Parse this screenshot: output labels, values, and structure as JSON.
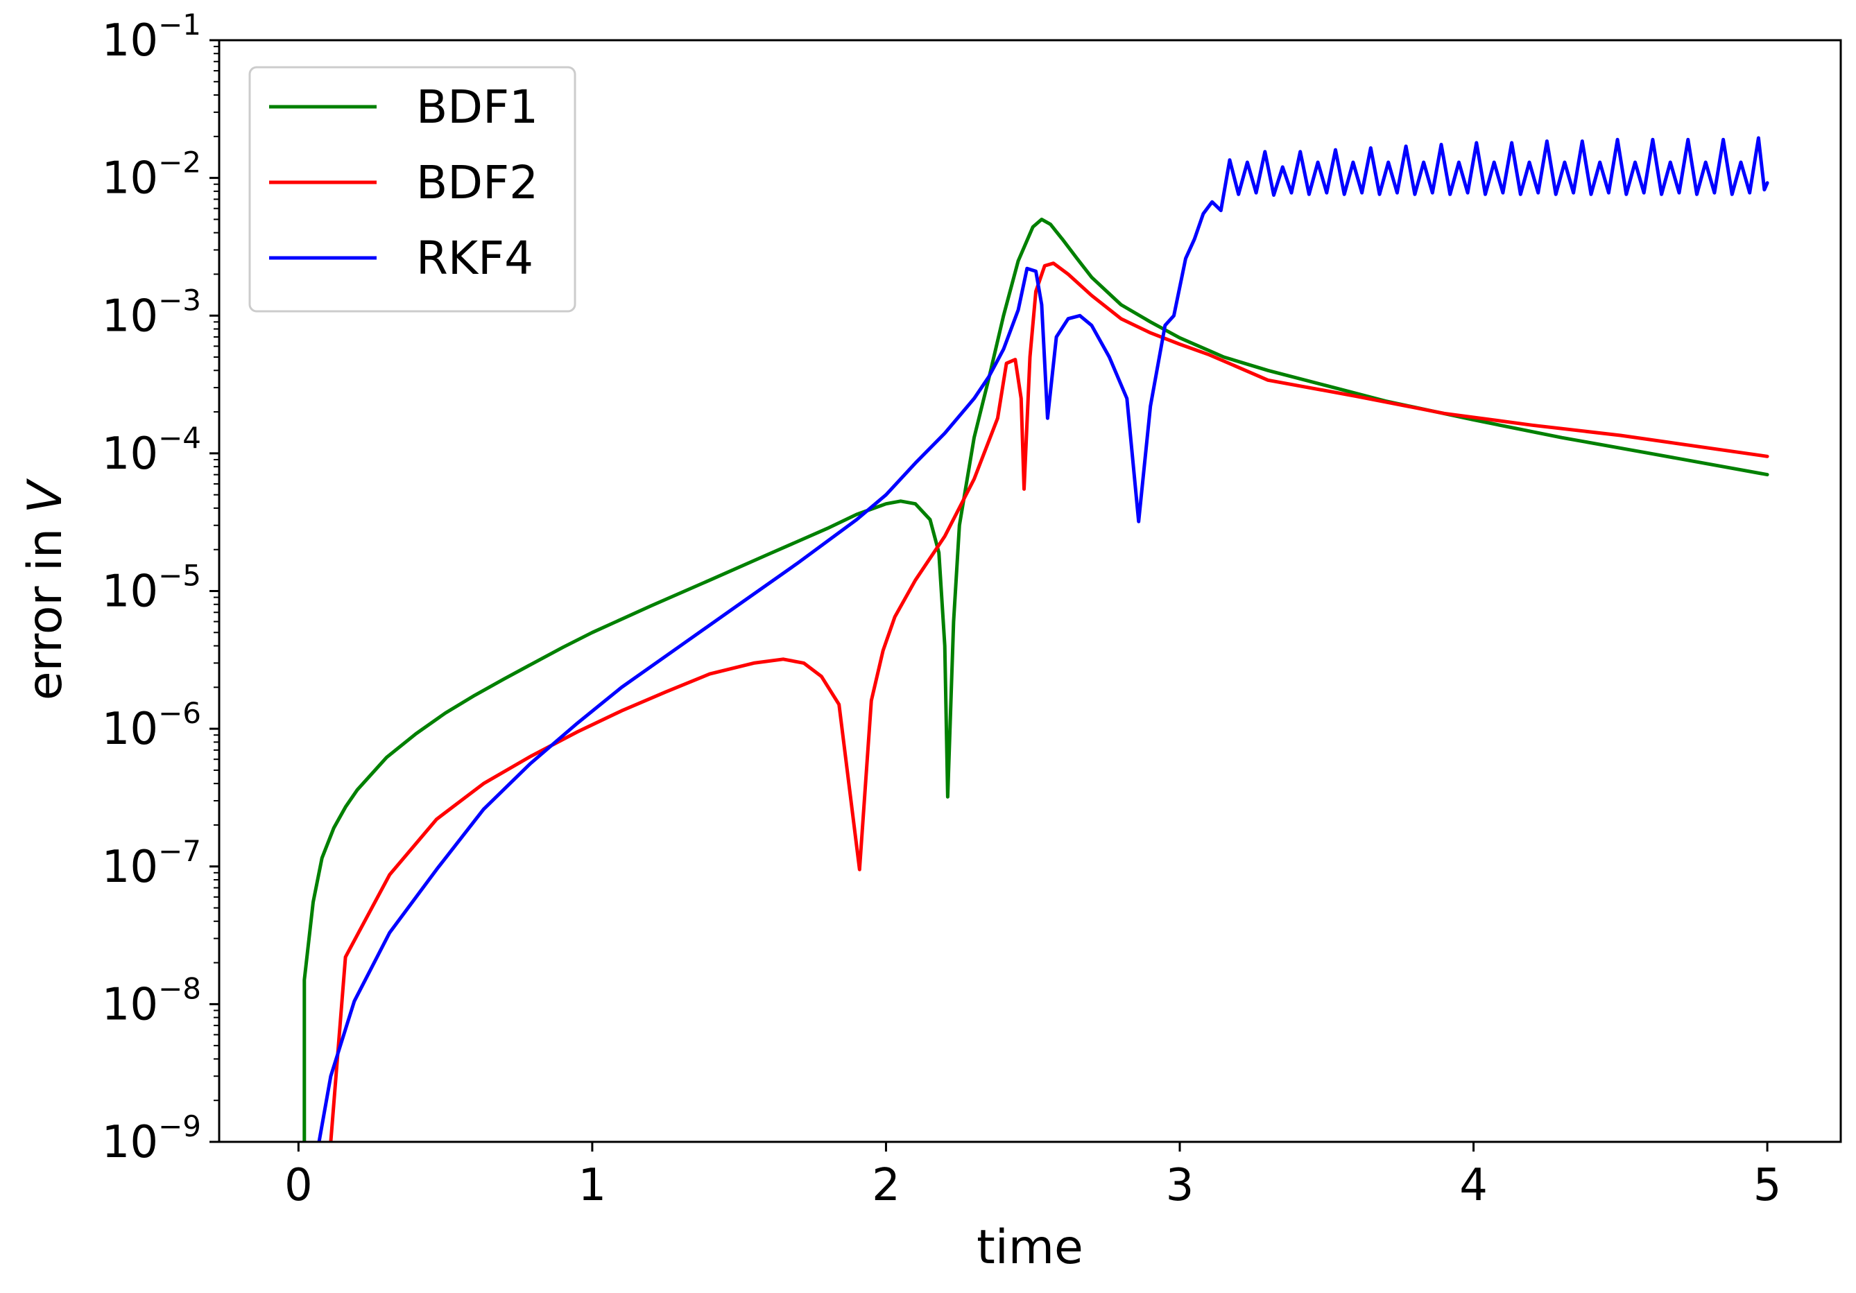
{
  "chart_data": {
    "type": "line",
    "xlabel": "time",
    "ylabel": {
      "prefix": "error in ",
      "var": "V"
    },
    "xlim": [
      -0.27,
      5.25
    ],
    "ylim": [
      1e-09,
      0.1
    ],
    "yscale": "log",
    "xticks": [
      {
        "value": 0,
        "label": "0"
      },
      {
        "value": 1,
        "label": "1"
      },
      {
        "value": 2,
        "label": "2"
      },
      {
        "value": 3,
        "label": "3"
      },
      {
        "value": 4,
        "label": "4"
      },
      {
        "value": 5,
        "label": "5"
      }
    ],
    "yticks": [
      {
        "exp": -9,
        "base": "10",
        "sup": "−9"
      },
      {
        "exp": -8,
        "base": "10",
        "sup": "−8"
      },
      {
        "exp": -7,
        "base": "10",
        "sup": "−7"
      },
      {
        "exp": -6,
        "base": "10",
        "sup": "−6"
      },
      {
        "exp": -5,
        "base": "10",
        "sup": "−5"
      },
      {
        "exp": -4,
        "base": "10",
        "sup": "−4"
      },
      {
        "exp": -3,
        "base": "10",
        "sup": "−3"
      },
      {
        "exp": -2,
        "base": "10",
        "sup": "−2"
      },
      {
        "exp": -1,
        "base": "10",
        "sup": "−1"
      }
    ],
    "legend": {
      "placement": "upper-left"
    },
    "grid": false,
    "series": [
      {
        "name": "BDF1",
        "color": "#008000",
        "points": [
          [
            0.02,
            1e-09
          ],
          [
            0.02,
            1.5e-08
          ],
          [
            0.05,
            5.5e-08
          ],
          [
            0.08,
            1.15e-07
          ],
          [
            0.12,
            1.9e-07
          ],
          [
            0.16,
            2.7e-07
          ],
          [
            0.2,
            3.6e-07
          ],
          [
            0.3,
            6.2e-07
          ],
          [
            0.4,
            9.2e-07
          ],
          [
            0.5,
            1.3e-06
          ],
          [
            0.6,
            1.75e-06
          ],
          [
            0.7,
            2.3e-06
          ],
          [
            0.8,
            3e-06
          ],
          [
            0.9,
            3.9e-06
          ],
          [
            1.0,
            5e-06
          ],
          [
            1.2,
            7.8e-06
          ],
          [
            1.4,
            1.2e-05
          ],
          [
            1.6,
            1.85e-05
          ],
          [
            1.8,
            2.85e-05
          ],
          [
            1.9,
            3.6e-05
          ],
          [
            2.0,
            4.3e-05
          ],
          [
            2.05,
            4.5e-05
          ],
          [
            2.1,
            4.3e-05
          ],
          [
            2.15,
            3.3e-05
          ],
          [
            2.18,
            1.9e-05
          ],
          [
            2.2,
            4e-06
          ],
          [
            2.21,
            3.2e-07
          ],
          [
            2.23,
            6e-06
          ],
          [
            2.25,
            3e-05
          ],
          [
            2.3,
            0.00013
          ],
          [
            2.35,
            0.00035
          ],
          [
            2.4,
            0.001
          ],
          [
            2.45,
            0.0025
          ],
          [
            2.5,
            0.0044
          ],
          [
            2.53,
            0.005
          ],
          [
            2.56,
            0.0046
          ],
          [
            2.6,
            0.0036
          ],
          [
            2.65,
            0.0026
          ],
          [
            2.7,
            0.0019
          ],
          [
            2.8,
            0.0012
          ],
          [
            2.9,
            0.0009
          ],
          [
            3.0,
            0.00069
          ],
          [
            3.15,
            0.0005
          ],
          [
            3.3,
            0.0004
          ],
          [
            3.5,
            0.00031
          ],
          [
            3.7,
            0.00024
          ],
          [
            4.0,
            0.000175
          ],
          [
            4.3,
            0.00013
          ],
          [
            4.6,
            0.0001
          ],
          [
            5.0,
            7e-05
          ]
        ]
      },
      {
        "name": "BDF2",
        "color": "#ff0000",
        "points": [
          [
            0.11,
            1e-09
          ],
          [
            0.16,
            2.2e-08
          ],
          [
            0.31,
            8.7e-08
          ],
          [
            0.47,
            2.2e-07
          ],
          [
            0.63,
            4e-07
          ],
          [
            0.79,
            6.3e-07
          ],
          [
            0.95,
            9.5e-07
          ],
          [
            1.1,
            1.35e-06
          ],
          [
            1.25,
            1.85e-06
          ],
          [
            1.4,
            2.5e-06
          ],
          [
            1.55,
            3e-06
          ],
          [
            1.65,
            3.2e-06
          ],
          [
            1.72,
            3e-06
          ],
          [
            1.78,
            2.4e-06
          ],
          [
            1.84,
            1.5e-06
          ],
          [
            1.91,
            9.5e-08
          ],
          [
            1.95,
            1.6e-06
          ],
          [
            1.99,
            3.7e-06
          ],
          [
            2.03,
            6.5e-06
          ],
          [
            2.1,
            1.2e-05
          ],
          [
            2.2,
            2.5e-05
          ],
          [
            2.3,
            6.5e-05
          ],
          [
            2.38,
            0.00018
          ],
          [
            2.41,
            0.00045
          ],
          [
            2.44,
            0.00048
          ],
          [
            2.46,
            0.00025
          ],
          [
            2.47,
            5.5e-05
          ],
          [
            2.49,
            0.0005
          ],
          [
            2.51,
            0.0015
          ],
          [
            2.54,
            0.0023
          ],
          [
            2.57,
            0.0024
          ],
          [
            2.62,
            0.002
          ],
          [
            2.7,
            0.0014
          ],
          [
            2.8,
            0.00095
          ],
          [
            2.9,
            0.00075
          ],
          [
            3.0,
            0.00062
          ],
          [
            3.1,
            0.00052
          ],
          [
            3.3,
            0.00034
          ],
          [
            3.6,
            0.00026
          ],
          [
            3.9,
            0.000195
          ],
          [
            4.2,
            0.00016
          ],
          [
            4.5,
            0.000135
          ],
          [
            5.0,
            9.5e-05
          ]
        ]
      },
      {
        "name": "RKF4",
        "color": "#0000ff",
        "points": [
          [
            0.07,
            1e-09
          ],
          [
            0.11,
            3e-09
          ],
          [
            0.19,
            1.05e-08
          ],
          [
            0.31,
            3.3e-08
          ],
          [
            0.47,
            9.5e-08
          ],
          [
            0.63,
            2.6e-07
          ],
          [
            0.79,
            5.6e-07
          ],
          [
            0.95,
            1.1e-06
          ],
          [
            1.1,
            2e-06
          ],
          [
            1.3,
            4e-06
          ],
          [
            1.5,
            8e-06
          ],
          [
            1.7,
            1.6e-05
          ],
          [
            1.9,
            3.3e-05
          ],
          [
            2.0,
            5e-05
          ],
          [
            2.1,
            8.5e-05
          ],
          [
            2.2,
            0.00014
          ],
          [
            2.3,
            0.00025
          ],
          [
            2.35,
            0.00036
          ],
          [
            2.4,
            0.00057
          ],
          [
            2.45,
            0.0011
          ],
          [
            2.48,
            0.0022
          ],
          [
            2.51,
            0.0021
          ],
          [
            2.53,
            0.0012
          ],
          [
            2.55,
            0.00018
          ],
          [
            2.58,
            0.0007
          ],
          [
            2.62,
            0.00095
          ],
          [
            2.66,
            0.001
          ],
          [
            2.7,
            0.00085
          ],
          [
            2.76,
            0.0005
          ],
          [
            2.82,
            0.00025
          ],
          [
            2.86,
            3.2e-05
          ],
          [
            2.9,
            0.00022
          ],
          [
            2.95,
            0.00085
          ],
          [
            2.98,
            0.001
          ],
          [
            3.02,
            0.0026
          ],
          [
            3.05,
            0.0036
          ],
          [
            3.08,
            0.0055
          ],
          [
            3.11,
            0.0067
          ],
          [
            3.14,
            0.0058
          ],
          [
            3.17,
            0.0135
          ],
          [
            3.2,
            0.0076
          ],
          [
            3.23,
            0.013
          ],
          [
            3.26,
            0.0078
          ],
          [
            3.29,
            0.0155
          ],
          [
            3.32,
            0.0075
          ],
          [
            3.35,
            0.012
          ],
          [
            3.38,
            0.0078
          ],
          [
            3.41,
            0.0155
          ],
          [
            3.44,
            0.0076
          ],
          [
            3.47,
            0.013
          ],
          [
            3.5,
            0.0078
          ],
          [
            3.53,
            0.016
          ],
          [
            3.56,
            0.0076
          ],
          [
            3.59,
            0.013
          ],
          [
            3.62,
            0.0078
          ],
          [
            3.65,
            0.0165
          ],
          [
            3.68,
            0.0076
          ],
          [
            3.71,
            0.013
          ],
          [
            3.74,
            0.0078
          ],
          [
            3.77,
            0.017
          ],
          [
            3.8,
            0.0076
          ],
          [
            3.83,
            0.013
          ],
          [
            3.86,
            0.0078
          ],
          [
            3.89,
            0.0175
          ],
          [
            3.92,
            0.0076
          ],
          [
            3.95,
            0.013
          ],
          [
            3.98,
            0.0078
          ],
          [
            4.01,
            0.018
          ],
          [
            4.04,
            0.0076
          ],
          [
            4.07,
            0.013
          ],
          [
            4.1,
            0.0078
          ],
          [
            4.13,
            0.018
          ],
          [
            4.16,
            0.0076
          ],
          [
            4.19,
            0.013
          ],
          [
            4.22,
            0.0078
          ],
          [
            4.25,
            0.0185
          ],
          [
            4.28,
            0.0076
          ],
          [
            4.31,
            0.013
          ],
          [
            4.34,
            0.0078
          ],
          [
            4.37,
            0.0185
          ],
          [
            4.4,
            0.0076
          ],
          [
            4.43,
            0.013
          ],
          [
            4.46,
            0.0078
          ],
          [
            4.49,
            0.019
          ],
          [
            4.52,
            0.0076
          ],
          [
            4.55,
            0.013
          ],
          [
            4.58,
            0.0078
          ],
          [
            4.61,
            0.019
          ],
          [
            4.64,
            0.0076
          ],
          [
            4.67,
            0.013
          ],
          [
            4.7,
            0.0078
          ],
          [
            4.73,
            0.019
          ],
          [
            4.76,
            0.0076
          ],
          [
            4.79,
            0.013
          ],
          [
            4.82,
            0.0078
          ],
          [
            4.85,
            0.019
          ],
          [
            4.88,
            0.0076
          ],
          [
            4.91,
            0.013
          ],
          [
            4.94,
            0.0078
          ],
          [
            4.97,
            0.0195
          ],
          [
            4.99,
            0.0082
          ],
          [
            5.0,
            0.0092
          ]
        ]
      }
    ]
  }
}
